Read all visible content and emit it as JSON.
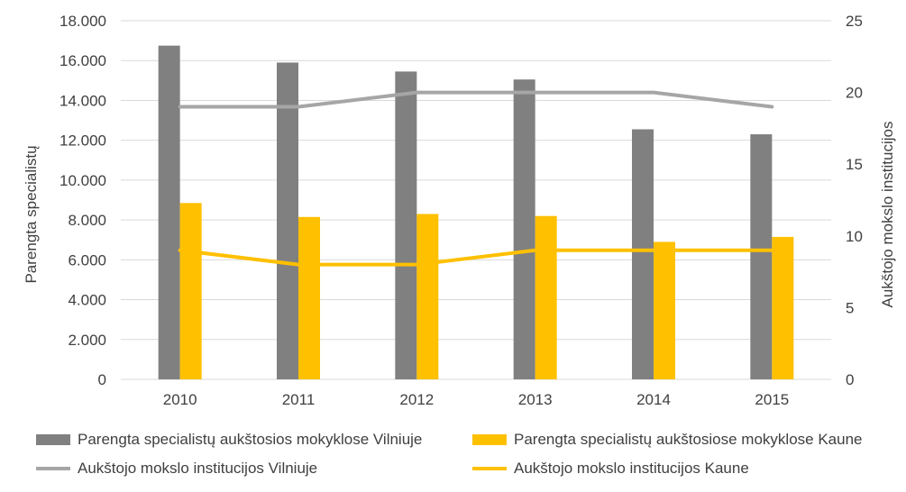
{
  "chart_data": {
    "type": "bar+line",
    "categories": [
      "2010",
      "2011",
      "2012",
      "2013",
      "2014",
      "2015"
    ],
    "bar_series": [
      {
        "name": "Parengta specialistų aukštosios mokyklose Vilniuje",
        "color": "#808080",
        "values": [
          16750,
          15900,
          15450,
          15050,
          12550,
          12300
        ]
      },
      {
        "name": "Parengta specialistų aukštosiose mokyklose Kaune",
        "color": "#FFC000",
        "values": [
          8850,
          8150,
          8300,
          8200,
          6900,
          7150
        ]
      }
    ],
    "line_series": [
      {
        "name": "Aukštojo mokslo institucijos Vilniuje",
        "color": "#A6A6A6",
        "values": [
          19,
          19,
          20,
          20,
          20,
          19
        ]
      },
      {
        "name": "Aukštojo mokslo institucijos Kaune",
        "color": "#FFC000",
        "values": [
          9,
          8,
          8,
          9,
          9,
          9
        ]
      }
    ],
    "y_left": {
      "label": "Parengta specialistų",
      "min": 0,
      "max": 18000,
      "step": 2000,
      "ticks": [
        "0",
        "2.000",
        "4.000",
        "6.000",
        "8.000",
        "10.000",
        "12.000",
        "14.000",
        "16.000",
        "18.000"
      ]
    },
    "y_right": {
      "label": "Aukštojo mokslo institucijos",
      "min": 0,
      "max": 25,
      "step": 5,
      "ticks": [
        "0",
        "5",
        "10",
        "15",
        "20",
        "25"
      ]
    },
    "grid": true,
    "legend_position": "bottom"
  }
}
